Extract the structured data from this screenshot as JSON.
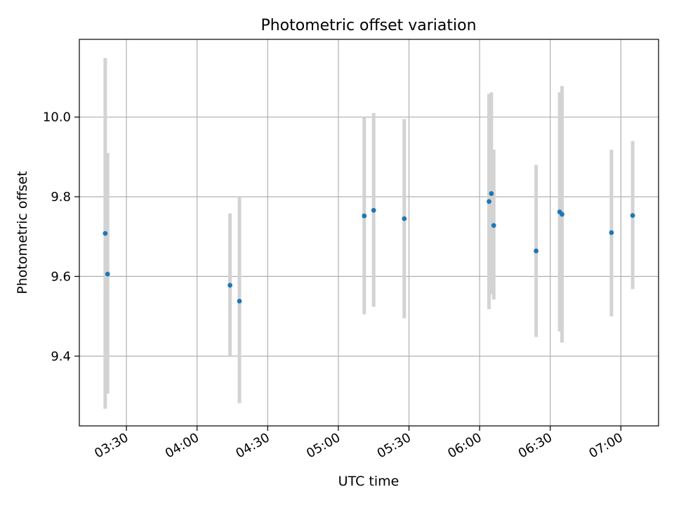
{
  "chart_data": {
    "type": "scatter",
    "title": "Photometric offset variation",
    "xlabel": "UTC time",
    "ylabel": "Photometric offset",
    "x_axis_kind": "time",
    "xlim": [
      "03:10",
      "07:16"
    ],
    "ylim": [
      9.225,
      10.195
    ],
    "x_ticks": [
      "03:30",
      "04:00",
      "04:30",
      "05:00",
      "05:30",
      "06:00",
      "06:30",
      "07:00"
    ],
    "y_ticks": [
      9.4,
      9.6,
      9.8,
      10.0
    ],
    "grid": true,
    "marker_color": "#1f77b4",
    "errorbar_color": "#d3d3d3",
    "points": [
      {
        "x": "03:21",
        "y": 9.708,
        "yerr_low": 9.268,
        "yerr_high": 10.148
      },
      {
        "x": "03:22",
        "y": 9.606,
        "yerr_low": 9.306,
        "yerr_high": 9.91
      },
      {
        "x": "04:14",
        "y": 9.578,
        "yerr_low": 9.4,
        "yerr_high": 9.758
      },
      {
        "x": "04:18",
        "y": 9.538,
        "yerr_low": 9.282,
        "yerr_high": 9.8
      },
      {
        "x": "05:11",
        "y": 9.752,
        "yerr_low": 9.505,
        "yerr_high": 10.0
      },
      {
        "x": "05:15",
        "y": 9.766,
        "yerr_low": 9.524,
        "yerr_high": 10.01
      },
      {
        "x": "05:28",
        "y": 9.745,
        "yerr_low": 9.495,
        "yerr_high": 9.995
      },
      {
        "x": "06:04",
        "y": 9.788,
        "yerr_low": 9.518,
        "yerr_high": 10.058
      },
      {
        "x": "06:05",
        "y": 9.808,
        "yerr_low": 9.555,
        "yerr_high": 10.062
      },
      {
        "x": "06:06",
        "y": 9.728,
        "yerr_low": 9.542,
        "yerr_high": 9.918
      },
      {
        "x": "06:24",
        "y": 9.664,
        "yerr_low": 9.448,
        "yerr_high": 9.88
      },
      {
        "x": "06:34",
        "y": 9.762,
        "yerr_low": 9.462,
        "yerr_high": 10.062
      },
      {
        "x": "06:35",
        "y": 9.756,
        "yerr_low": 9.434,
        "yerr_high": 10.078
      },
      {
        "x": "06:56",
        "y": 9.71,
        "yerr_low": 9.5,
        "yerr_high": 9.918
      },
      {
        "x": "07:05",
        "y": 9.753,
        "yerr_low": 9.568,
        "yerr_high": 9.94
      }
    ]
  }
}
